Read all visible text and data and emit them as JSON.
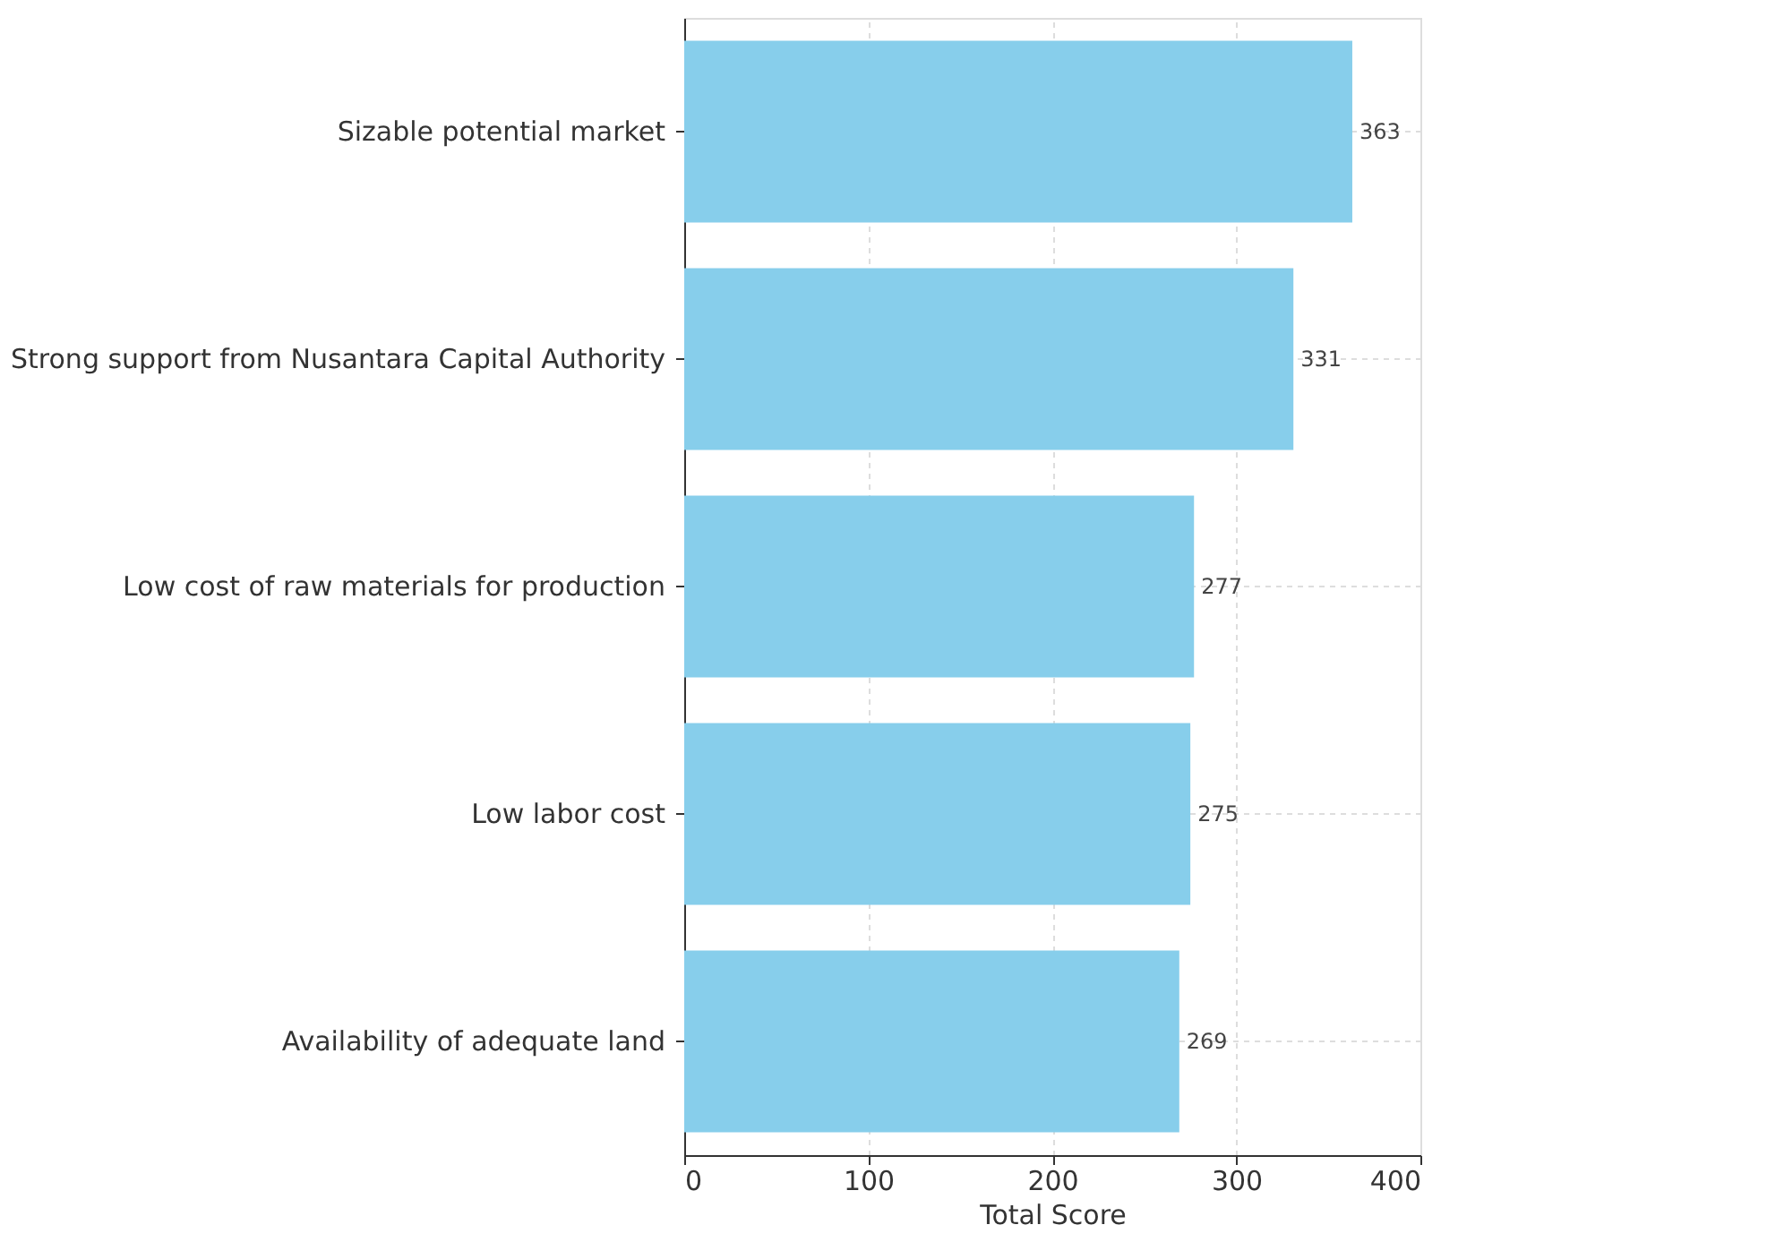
{
  "chart_data": {
    "type": "bar",
    "orientation": "horizontal",
    "categories": [
      "Sizable potential market",
      "Strong support from Nusantara Capital Authority",
      "Low cost of raw materials for production",
      "Low labor cost",
      "Availability of adequate land"
    ],
    "values": [
      363,
      331,
      277,
      275,
      269
    ],
    "color": "#87ceeb",
    "xlabel": "Total Score",
    "xlim": [
      0,
      400
    ],
    "xticks": [
      0,
      100,
      200,
      300,
      400
    ],
    "grid": true,
    "data_labels": true
  }
}
